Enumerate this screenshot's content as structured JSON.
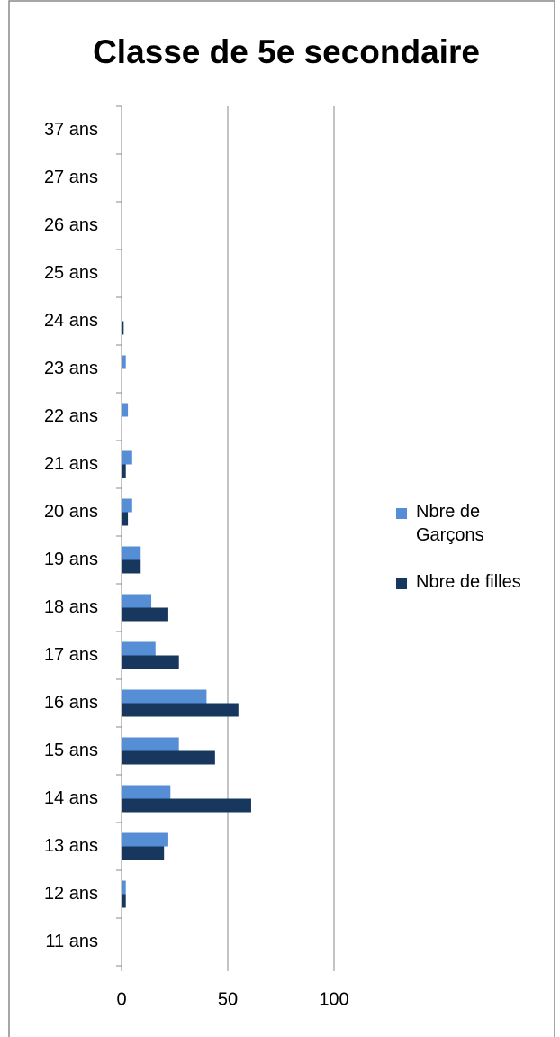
{
  "chart_data": {
    "type": "hbar",
    "title": "Classe de 5e secondaire",
    "categories": [
      "11 ans",
      "12 ans",
      "13 ans",
      "14 ans",
      "15 ans",
      "16 ans",
      "17 ans",
      "18 ans",
      "19 ans",
      "20 ans",
      "21 ans",
      "22 ans",
      "23 ans",
      "24 ans",
      "25 ans",
      "26 ans",
      "27 ans",
      "37 ans"
    ],
    "series": [
      {
        "name": "Nbre de Garçons",
        "color": "#558ed5",
        "values": [
          0,
          2,
          22,
          23,
          27,
          40,
          16,
          14,
          9,
          5,
          5,
          3,
          2,
          0,
          0,
          0,
          0,
          0
        ]
      },
      {
        "name": "Nbre de filles",
        "color": "#17375e",
        "values": [
          0,
          2,
          20,
          61,
          44,
          55,
          27,
          22,
          9,
          3,
          2,
          0,
          0,
          1,
          0,
          0,
          0,
          0
        ]
      }
    ],
    "xlim": [
      0,
      100
    ],
    "xticks": [
      0,
      50,
      100
    ],
    "grid": true,
    "legend": "right"
  }
}
